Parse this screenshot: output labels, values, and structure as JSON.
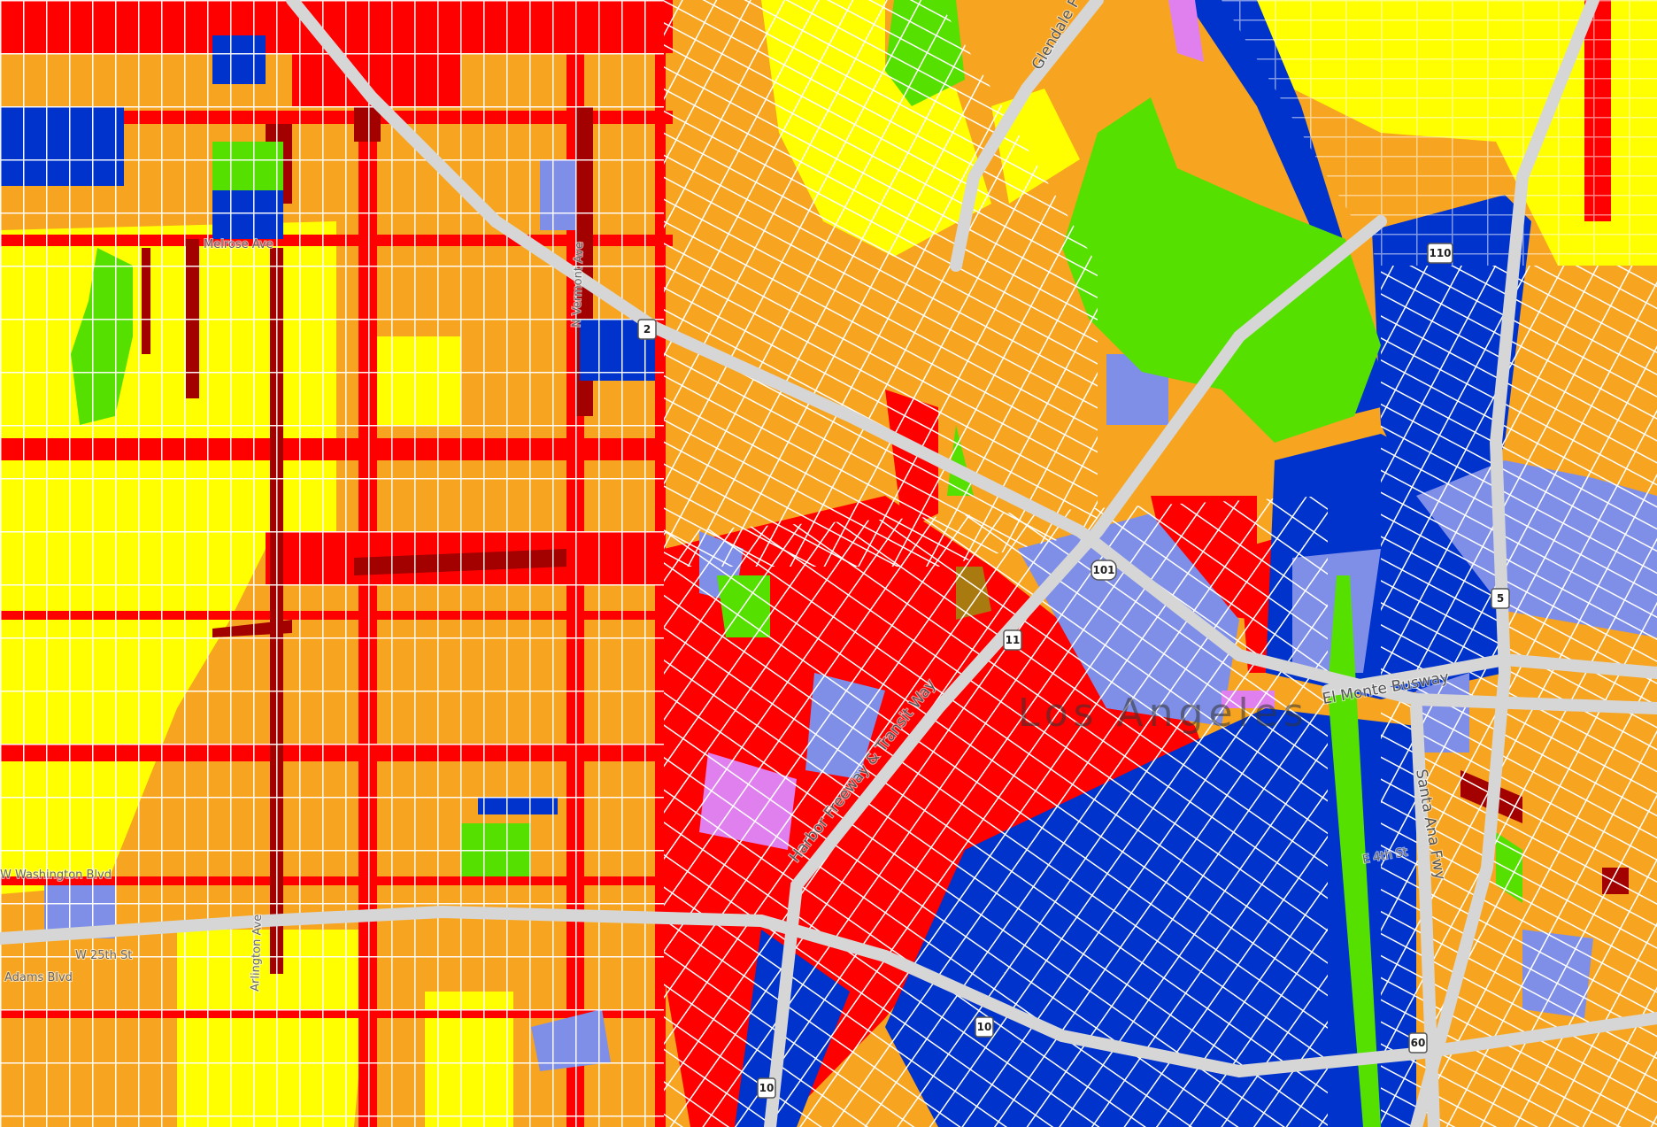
{
  "map": {
    "zone_colors": {
      "residential_multi": "#f7a520",
      "residential_single": "#ffff00",
      "commercial": "#ff0000",
      "commercial_dense": "#a30000",
      "industrial": "#0033cc",
      "public": "#7f8fe8",
      "open_space": "#55e000",
      "mixed": "#e080ee",
      "historic": "#a87a10",
      "freeway": "#d6d6d6",
      "street": "#ffffff"
    },
    "freeway_labels": {
      "glendale": "Glendale Fwy",
      "harbor": "Harbor Freeway & Transit Way",
      "el_monte": "El Monte Busway",
      "santa_ana": "Santa Ana Fwy"
    },
    "city_label": "Los Angeles",
    "street_labels": {
      "vermont": "N Vermont Ave",
      "melrose": "Melrose Ave",
      "washington": "W Washington Blvd",
      "adams": "Adams Blvd",
      "arlington": "Arlington Ave",
      "w25th": "W 25th St",
      "e4th": "E 4th St"
    },
    "shields": [
      {
        "route": "2",
        "type": "state"
      },
      {
        "route": "101",
        "type": "us"
      },
      {
        "route": "110",
        "type": "state"
      },
      {
        "route": "11",
        "type": "state"
      },
      {
        "route": "5",
        "type": "interstate"
      },
      {
        "route": "10",
        "type": "interstate"
      },
      {
        "route": "10",
        "type": "interstate"
      },
      {
        "route": "60",
        "type": "state"
      }
    ]
  }
}
